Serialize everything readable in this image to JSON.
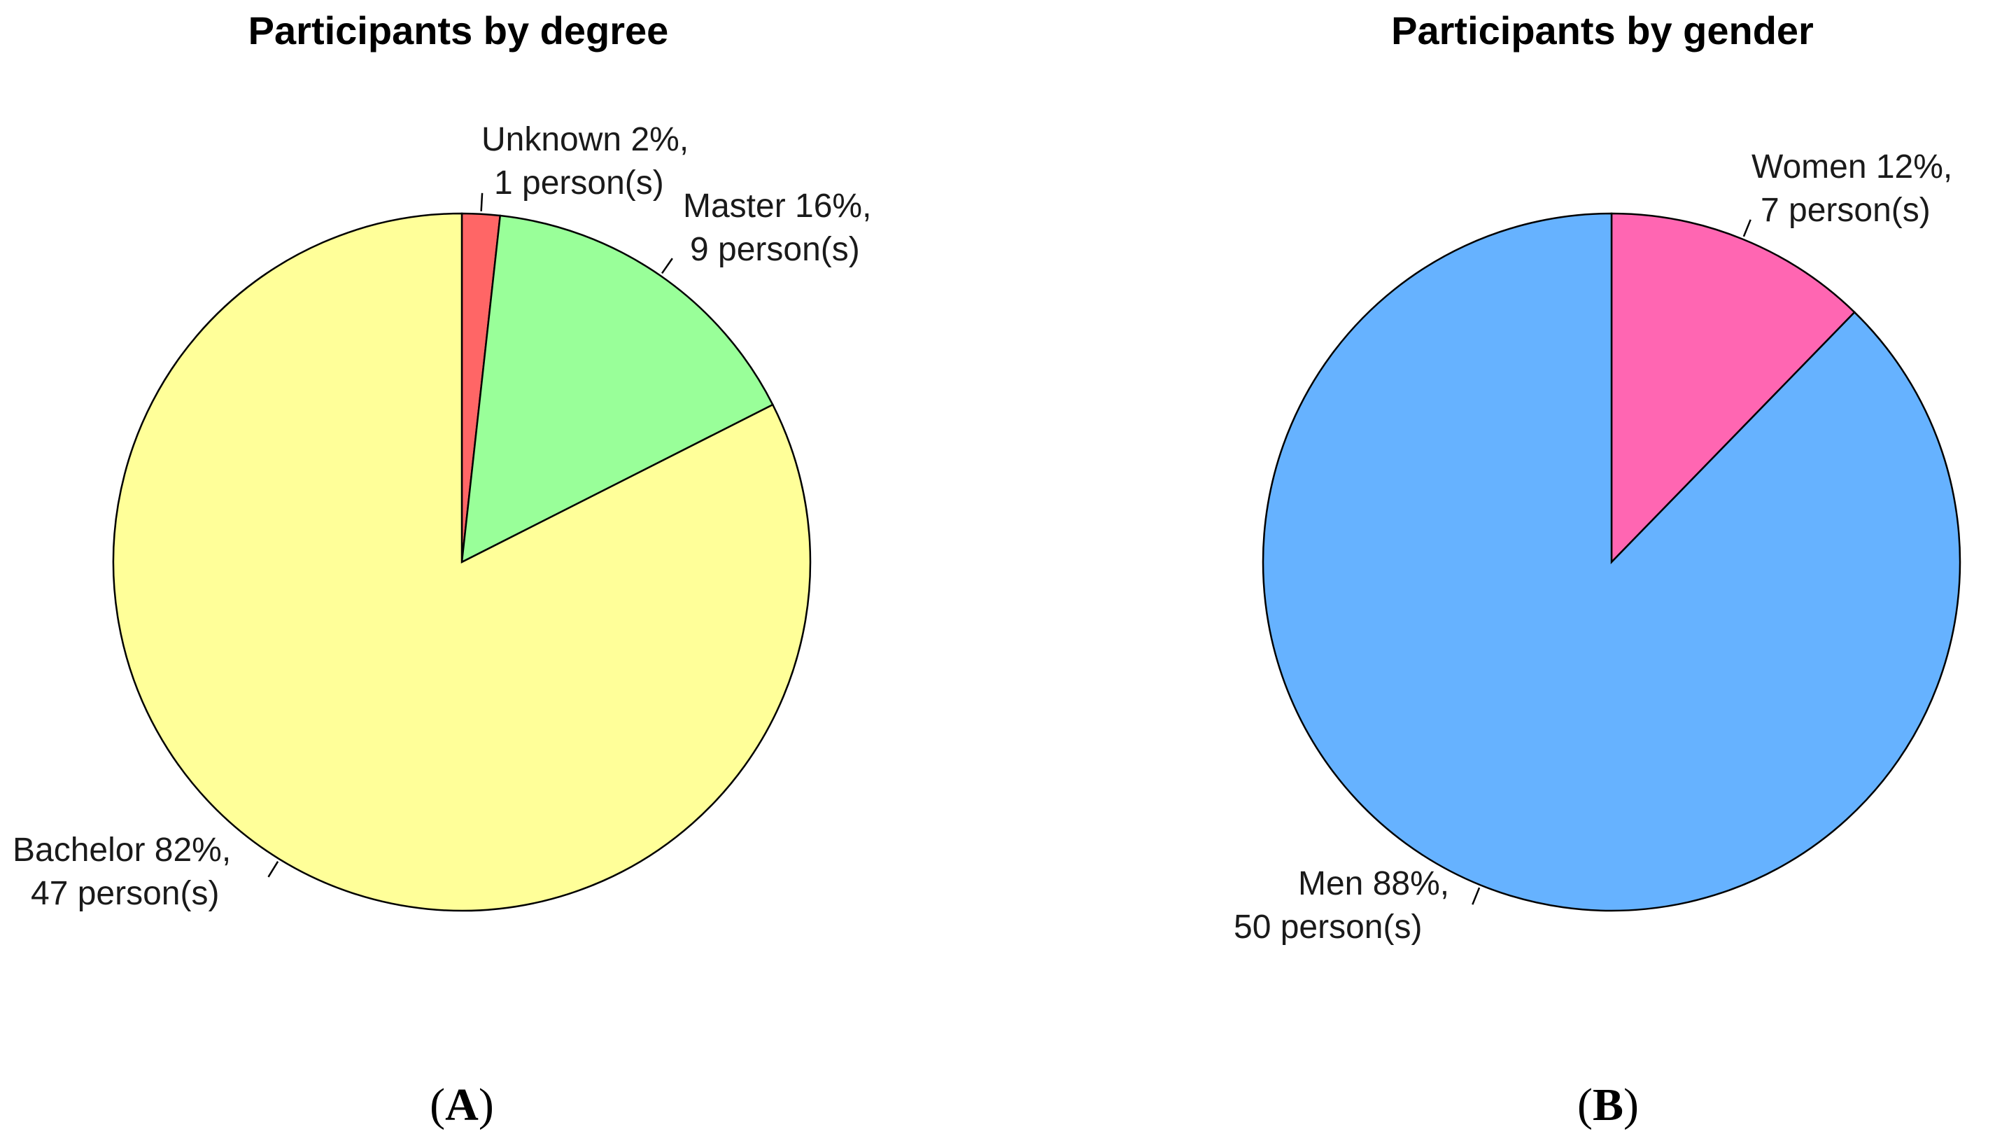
{
  "chart_data": [
    {
      "type": "pie",
      "title": "Participants by degree",
      "panel": "A",
      "slices": [
        {
          "name": "Unknown",
          "percent": 2,
          "count": 1,
          "label_lines": [
            "Unknown 2%,",
            "1 person(s)"
          ],
          "color": "#FF6666"
        },
        {
          "name": "Master",
          "percent": 16,
          "count": 9,
          "label_lines": [
            "Master 16%,",
            "9 person(s)"
          ],
          "color": "#99FF99"
        },
        {
          "name": "Bachelor",
          "percent": 82,
          "count": 47,
          "label_lines": [
            "Bachelor 82%,",
            "47 person(s)"
          ],
          "color": "#FFFF99"
        }
      ]
    },
    {
      "type": "pie",
      "title": "Participants by gender",
      "panel": "B",
      "slices": [
        {
          "name": "Women",
          "percent": 12,
          "count": 7,
          "label_lines": [
            "Women 12%,",
            "7 person(s)"
          ],
          "color": "#FF66B2"
        },
        {
          "name": "Men",
          "percent": 88,
          "count": 50,
          "label_lines": [
            "Men 88%,",
            "50 person(s)"
          ],
          "color": "#66B2FF"
        }
      ]
    }
  ]
}
